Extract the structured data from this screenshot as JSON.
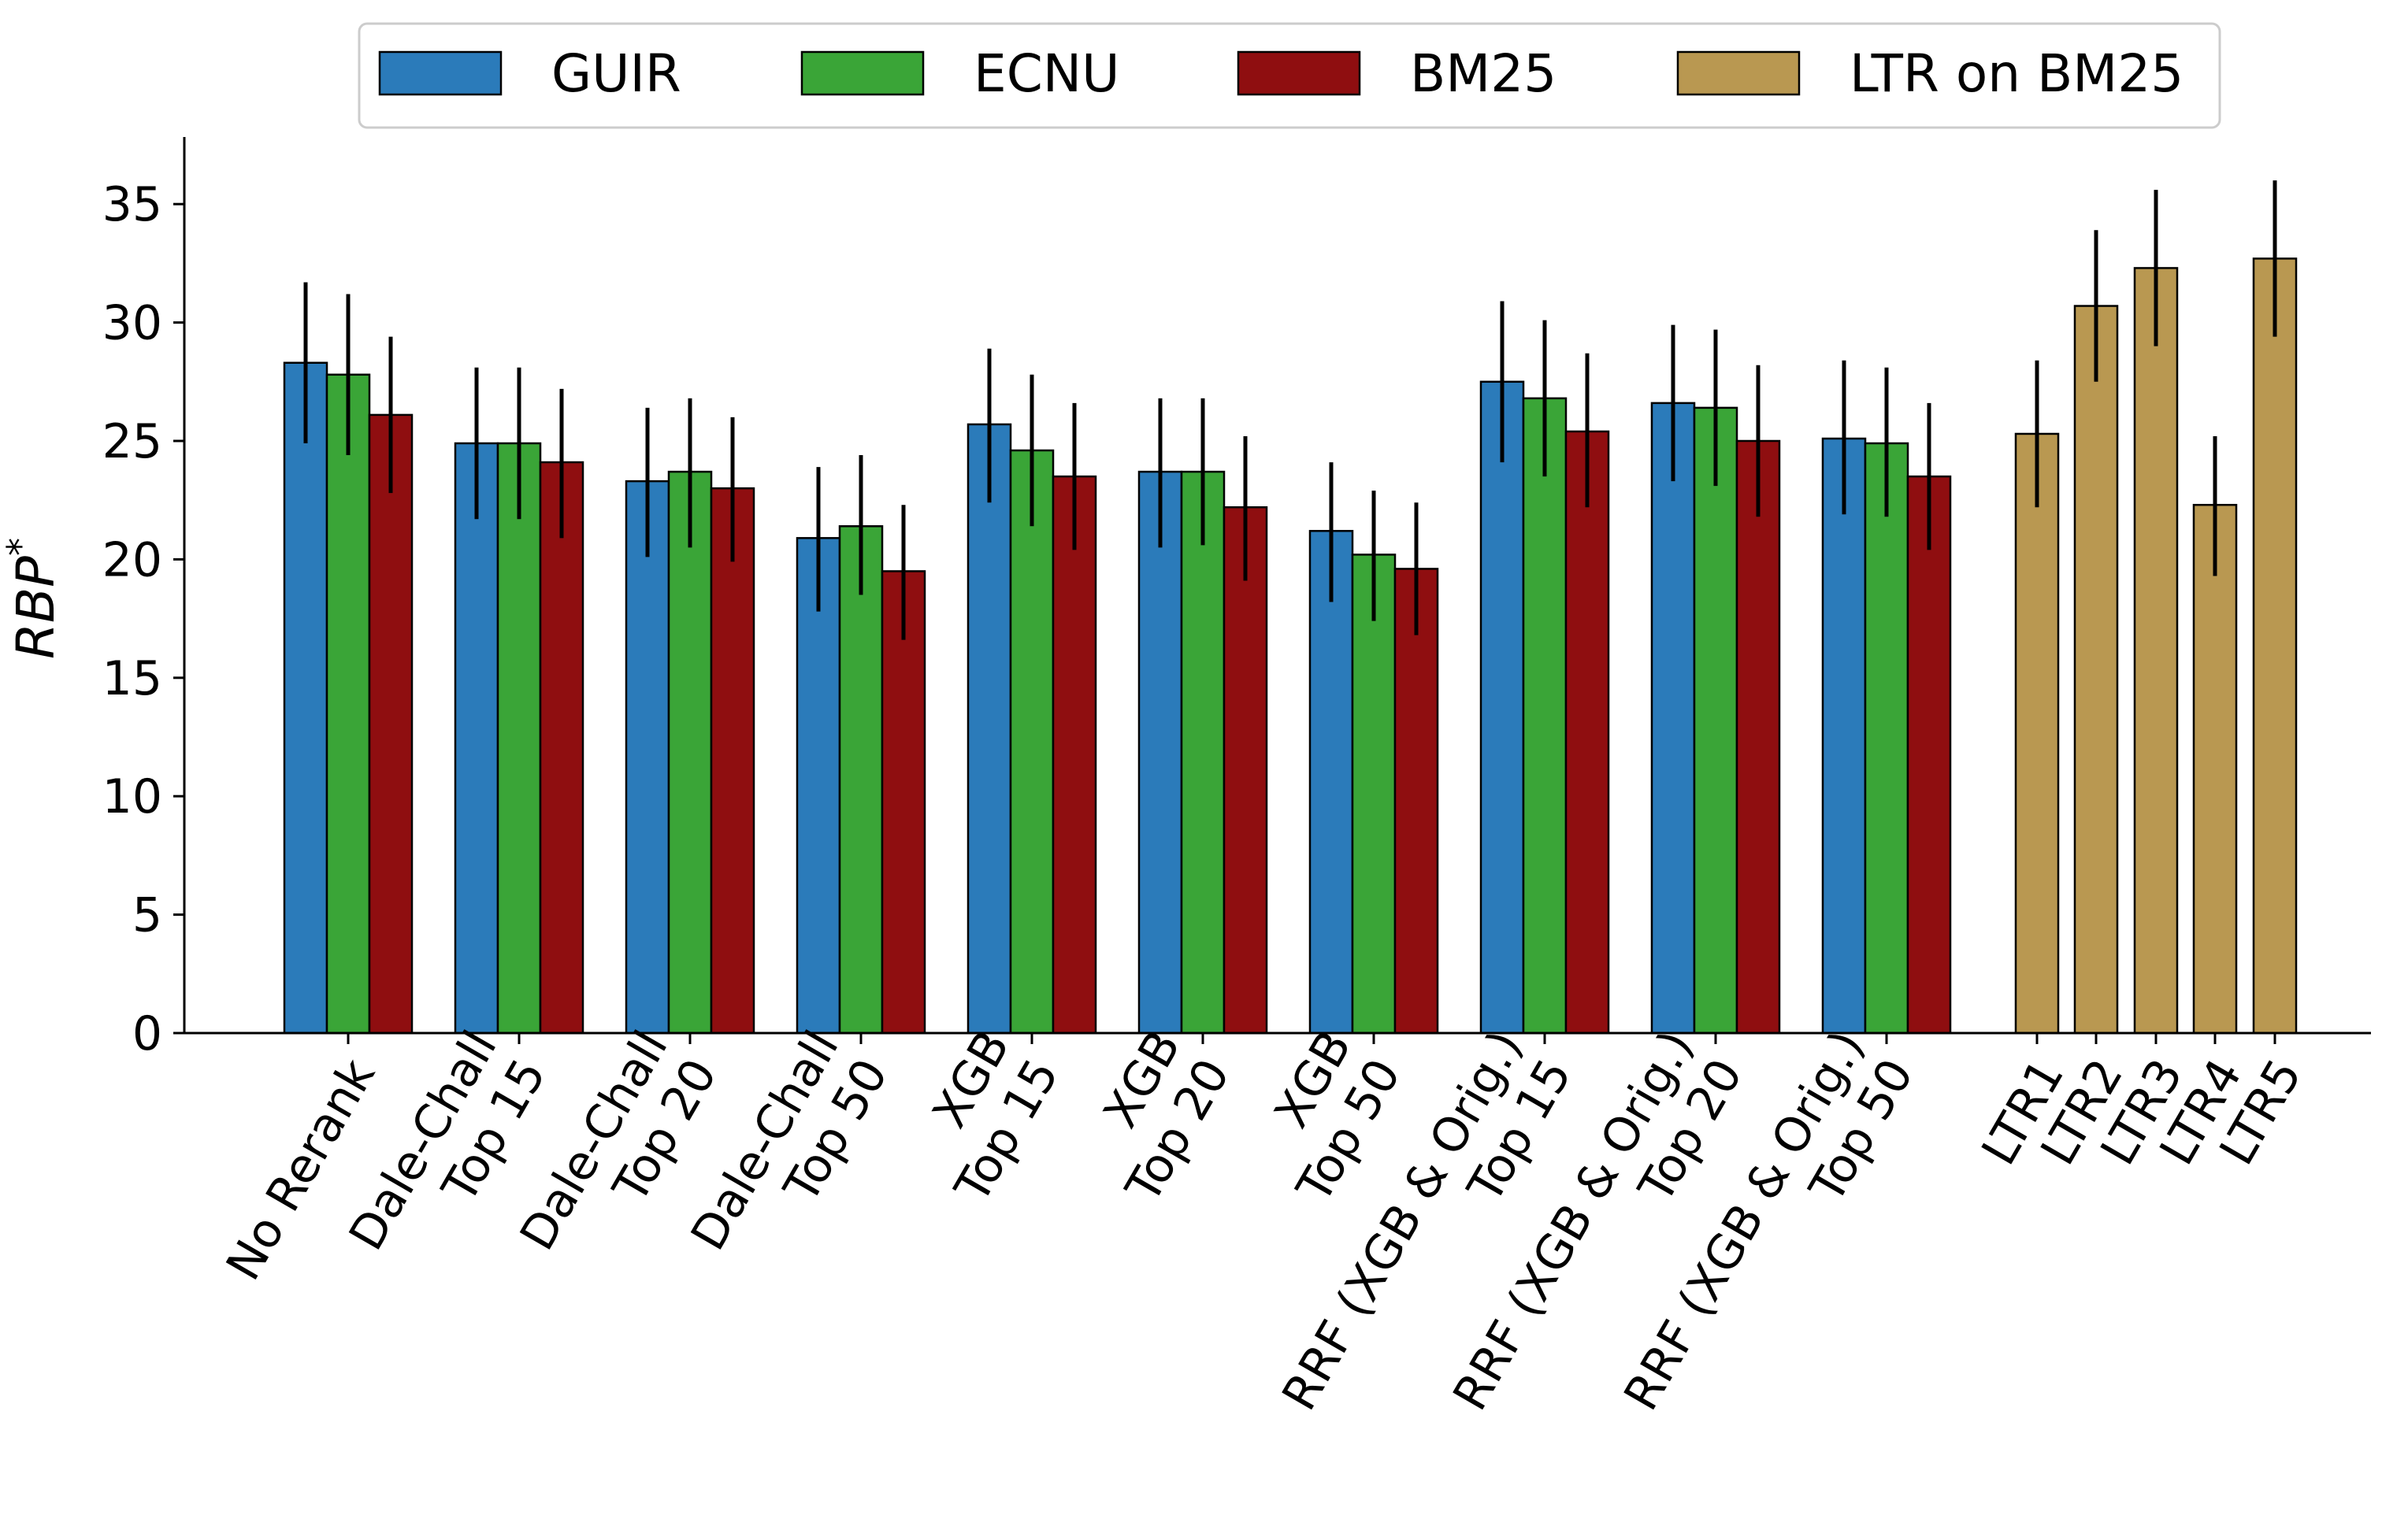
{
  "chart_data": {
    "type": "bar",
    "ylabel": "RBP",
    "ylabel_superscript": "*",
    "xlabel": "",
    "ylim": [
      0,
      38
    ],
    "yticks": [
      0,
      5,
      10,
      15,
      20,
      25,
      30,
      35
    ],
    "legend_position": "top",
    "grid": false,
    "categories": [
      [
        "No Rerank"
      ],
      [
        "Dale-Chall",
        "Top 15"
      ],
      [
        "Dale-Chall",
        "Top 20"
      ],
      [
        "Dale-Chall",
        "Top 50"
      ],
      [
        "XGB",
        "Top 15"
      ],
      [
        "XGB",
        "Top 20"
      ],
      [
        "XGB",
        "Top 50"
      ],
      [
        "RRF (XGB & Orig.)",
        "Top 15"
      ],
      [
        "RRF (XGB & Orig.)",
        "Top 20"
      ],
      [
        "RRF (XGB & Orig.)",
        "Top 50"
      ]
    ],
    "series": [
      {
        "name": "GUIR",
        "color": "#2b7bba",
        "values": [
          28.3,
          24.9,
          23.3,
          20.9,
          25.7,
          23.7,
          21.2,
          27.5,
          26.6,
          25.1
        ],
        "err_low": [
          24.9,
          21.7,
          20.1,
          17.8,
          22.4,
          20.5,
          18.2,
          24.1,
          23.3,
          21.9
        ],
        "err_high": [
          31.7,
          28.1,
          26.4,
          23.9,
          28.9,
          26.8,
          24.1,
          30.9,
          29.9,
          28.4
        ]
      },
      {
        "name": "ECNU",
        "color": "#3aa537",
        "values": [
          27.8,
          24.9,
          23.7,
          21.4,
          24.6,
          23.7,
          20.2,
          26.8,
          26.4,
          24.9
        ],
        "err_low": [
          24.4,
          21.7,
          20.5,
          18.5,
          21.4,
          20.6,
          17.4,
          23.5,
          23.1,
          21.8
        ],
        "err_high": [
          31.2,
          28.1,
          26.8,
          24.4,
          27.8,
          26.8,
          22.9,
          30.1,
          29.7,
          28.1
        ]
      },
      {
        "name": "BM25",
        "color": "#8f0e10",
        "values": [
          26.1,
          24.1,
          23.0,
          19.5,
          23.5,
          22.2,
          19.6,
          25.4,
          25.0,
          23.5
        ],
        "err_low": [
          22.8,
          20.9,
          19.9,
          16.6,
          20.4,
          19.1,
          16.8,
          22.2,
          21.8,
          20.4
        ],
        "err_high": [
          29.4,
          27.2,
          26.0,
          22.3,
          26.6,
          25.2,
          22.4,
          28.7,
          28.2,
          26.6
        ]
      }
    ],
    "ltr_series": {
      "name": "LTR on BM25",
      "color": "#b99851",
      "categories": [
        "LTR1",
        "LTR2",
        "LTR3",
        "LTR4",
        "LTR5"
      ],
      "values": [
        25.3,
        30.7,
        32.3,
        22.3,
        32.7
      ],
      "err_low": [
        22.2,
        27.5,
        29.0,
        19.3,
        29.4
      ],
      "err_high": [
        28.4,
        33.9,
        35.6,
        25.2,
        36.0
      ]
    }
  }
}
